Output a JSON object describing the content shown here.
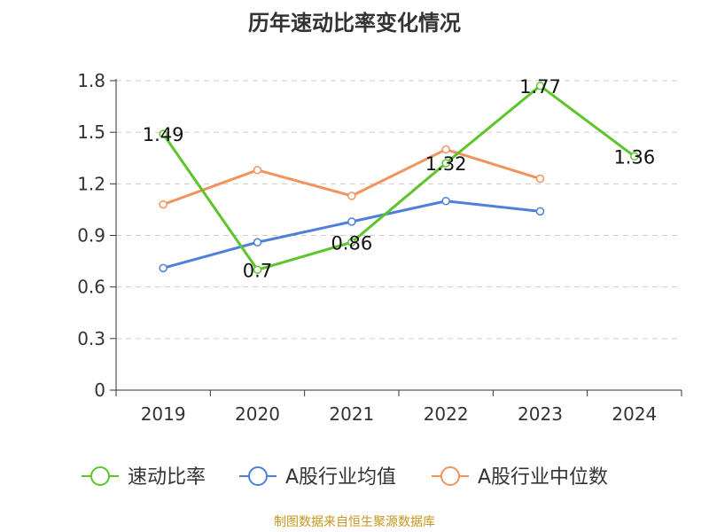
{
  "chart_data": {
    "type": "line",
    "title": "历年速动比率变化情况",
    "categories": [
      "2019",
      "2020",
      "2021",
      "2022",
      "2023",
      "2024"
    ],
    "ylim": [
      0,
      1.8
    ],
    "yticks": [
      "0",
      "0.3",
      "0.6",
      "0.9",
      "1.2",
      "1.5",
      "1.8"
    ],
    "grid": true,
    "legend_position": "bottom",
    "series": [
      {
        "name": "速动比率",
        "color": "#5dc42a",
        "values": [
          1.49,
          0.7,
          0.86,
          1.32,
          1.77,
          1.36
        ],
        "labels": [
          "1.49",
          "0.7",
          "0.86",
          "1.32",
          "1.77",
          "1.36"
        ]
      },
      {
        "name": "A股行业均值",
        "color": "#4f7fdc",
        "values": [
          0.71,
          0.86,
          0.98,
          1.1,
          1.04,
          null
        ]
      },
      {
        "name": "A股行业中位数",
        "color": "#f4925c",
        "values": [
          1.08,
          1.28,
          1.13,
          1.4,
          1.23,
          null
        ]
      }
    ]
  },
  "source_note": "制图数据来自恒生聚源数据库"
}
